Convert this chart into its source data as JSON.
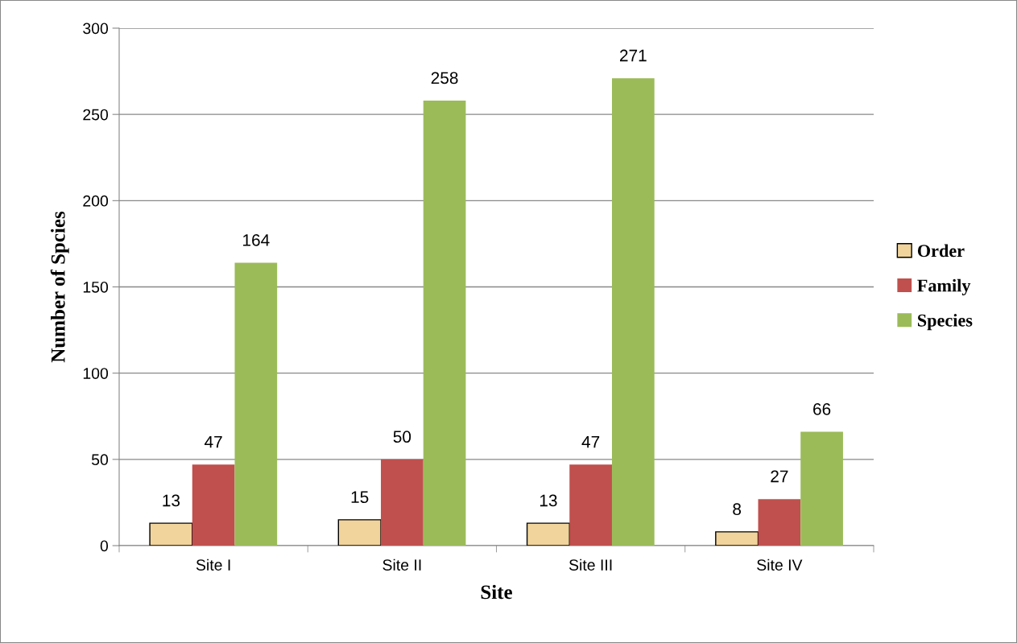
{
  "chart_data": {
    "type": "bar",
    "xlabel": "Site",
    "ylabel": "Number of Spcies",
    "categories": [
      "Site I",
      "Site II",
      "Site III",
      "Site IV"
    ],
    "series": [
      {
        "name": "Order",
        "color": "#f0d49c",
        "values": [
          13,
          15,
          13,
          8
        ]
      },
      {
        "name": "Family",
        "color": "#c0504d",
        "values": [
          47,
          50,
          47,
          27
        ]
      },
      {
        "name": "Species",
        "color": "#9bbb59",
        "values": [
          164,
          258,
          271,
          66
        ]
      }
    ],
    "ylim": [
      0,
      300
    ],
    "yticks": [
      0,
      50,
      100,
      150,
      200,
      250,
      300
    ],
    "grid": "y",
    "legend": "right",
    "data_labels": true
  }
}
